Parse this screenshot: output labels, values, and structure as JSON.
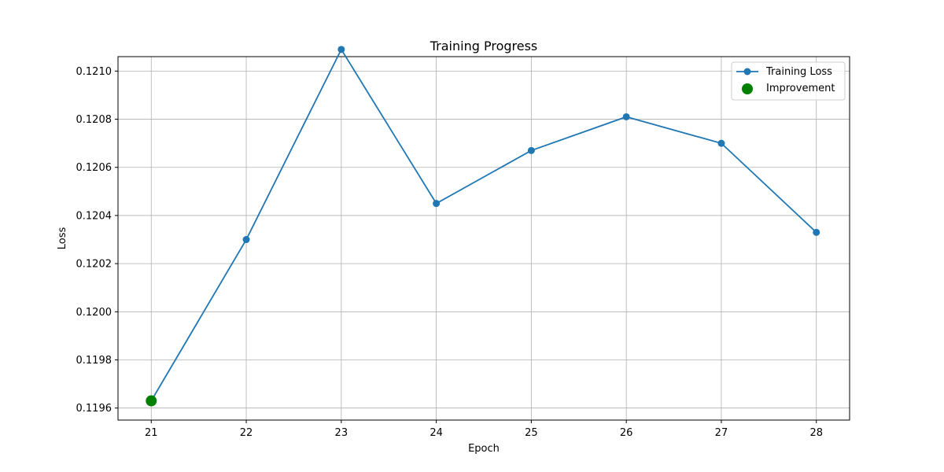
{
  "chart_data": {
    "type": "line",
    "title": "Training Progress",
    "xlabel": "Epoch",
    "ylabel": "Loss",
    "x": [
      21,
      22,
      23,
      24,
      25,
      26,
      27,
      28
    ],
    "xlim": [
      20.65,
      28.35
    ],
    "ylim": [
      0.11955,
      0.12106
    ],
    "x_ticks": [
      "21",
      "22",
      "23",
      "24",
      "25",
      "26",
      "27",
      "28"
    ],
    "y_ticks": [
      "0.1196",
      "0.1198",
      "0.1200",
      "0.1202",
      "0.1204",
      "0.1206",
      "0.1208",
      "0.1210"
    ],
    "grid": true,
    "legend_position": "top-right",
    "series": [
      {
        "name": "Training Loss",
        "kind": "line-marker",
        "color": "#1f77b4",
        "values": [
          0.11963,
          0.1203,
          0.12109,
          0.12045,
          0.12067,
          0.12081,
          0.1207,
          0.12033
        ]
      },
      {
        "name": "Improvement",
        "kind": "scatter",
        "color": "#008000",
        "points": [
          {
            "x": 21,
            "y": 0.11963
          }
        ]
      }
    ]
  }
}
